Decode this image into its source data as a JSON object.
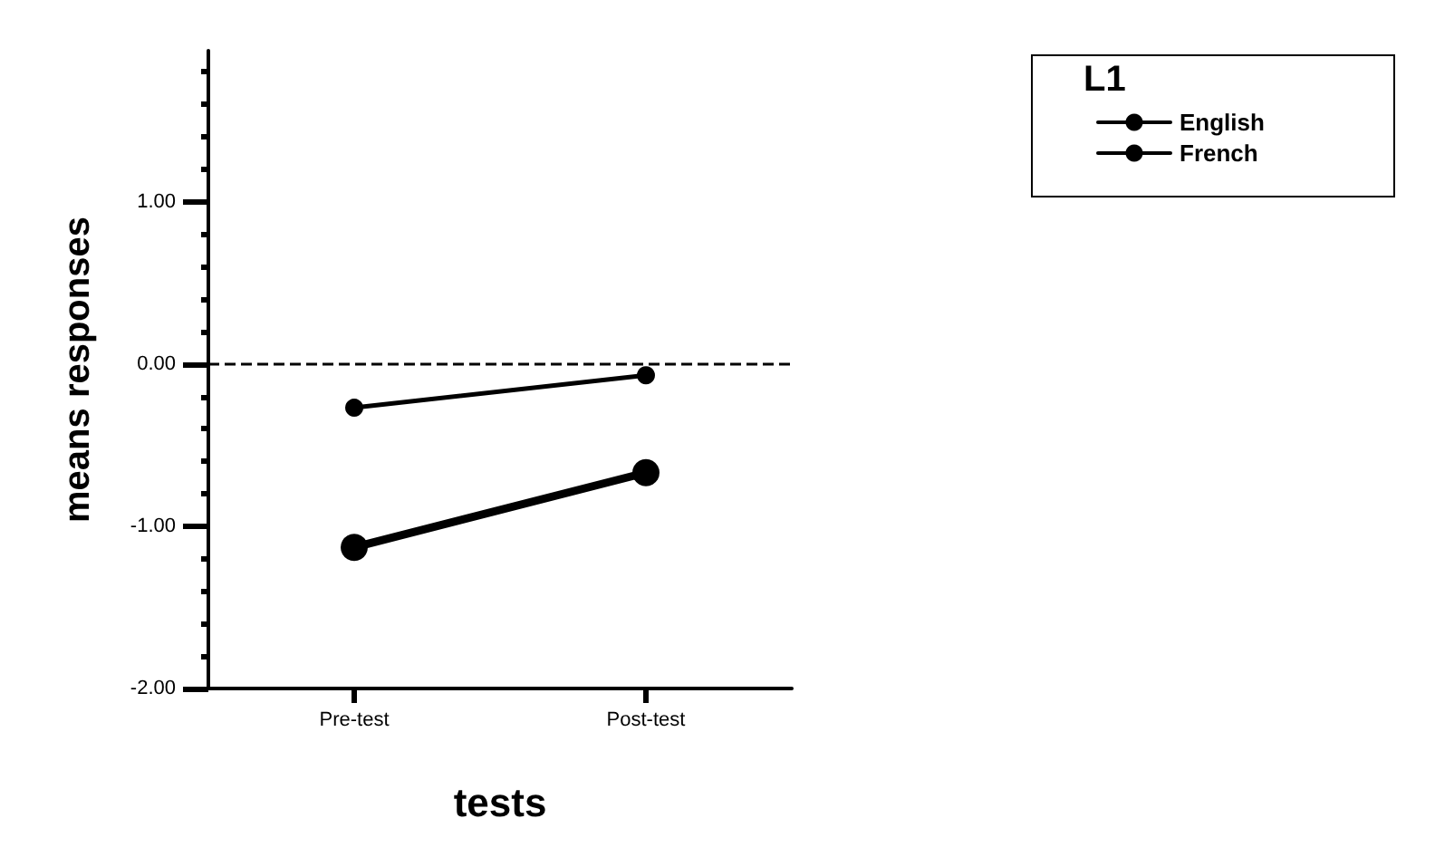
{
  "chart_data": {
    "type": "line",
    "xlabel": "tests",
    "ylabel": "means responses",
    "legend_title": "L1",
    "categories": [
      "Pre-test",
      "Post-test"
    ],
    "series": [
      {
        "name": "English",
        "color": "#000000",
        "values": [
          -1.13,
          -0.67
        ]
      },
      {
        "name": "French",
        "color": "#000000",
        "values": [
          -0.27,
          -0.07
        ]
      }
    ],
    "ylim": [
      -2,
      1.93
    ],
    "yticks": [
      {
        "value": -2,
        "label": "-2.00"
      },
      {
        "value": -1,
        "label": "-1.00"
      },
      {
        "value": 0,
        "label": "0.00"
      },
      {
        "value": 1,
        "label": "1.00"
      }
    ],
    "ref_lines": [
      {
        "axis": "y",
        "value": 0,
        "line_style": "dashed",
        "color": "#000000"
      }
    ],
    "grid": false,
    "legend": "top right",
    "marker": "circle",
    "line_style": "solid"
  }
}
